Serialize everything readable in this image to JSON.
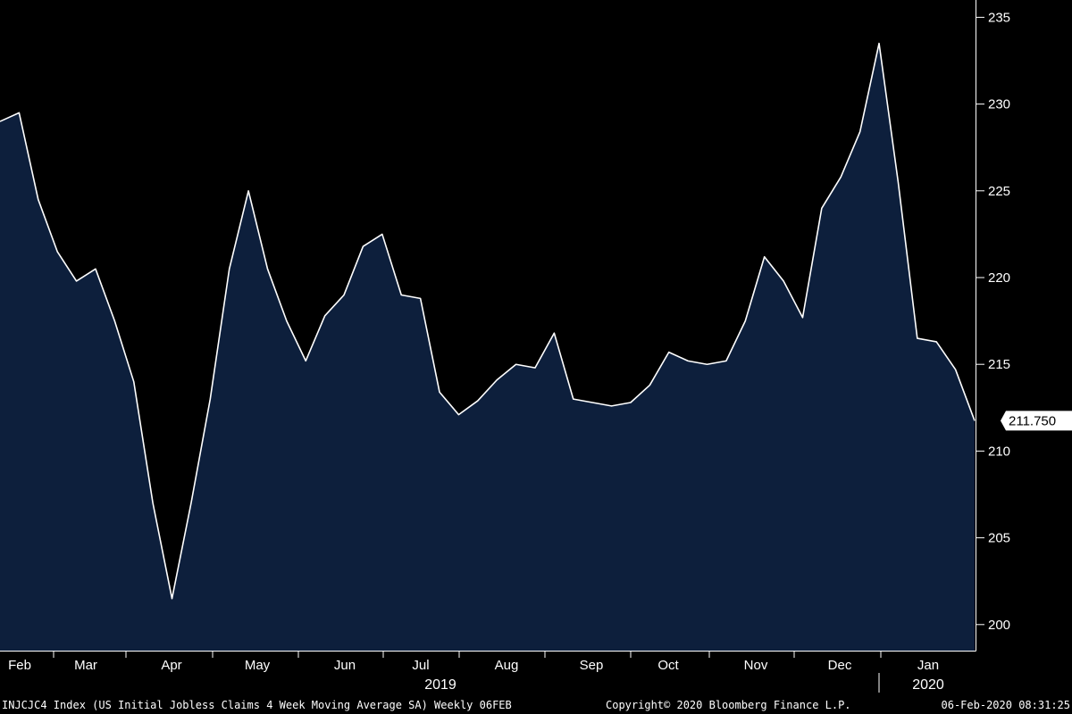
{
  "chart_data": {
    "type": "area",
    "title": "",
    "xlabel": "",
    "ylabel": "",
    "ylim": [
      198.5,
      236
    ],
    "yticks": [
      "200",
      "205",
      "210",
      "215",
      "220",
      "225",
      "230",
      "235"
    ],
    "month_labels": [
      "Feb",
      "Mar",
      "Apr",
      "May",
      "Jun",
      "Jul",
      "Aug",
      "Sep",
      "Oct",
      "Nov",
      "Dec",
      "Jan"
    ],
    "year_labels": [
      "2019",
      "2020"
    ],
    "last_value_label": "211.750",
    "colors": {
      "fill": "#0d1f3c",
      "line": "#ffffff",
      "background": "#000000"
    },
    "series": [
      {
        "values": [
          229.0,
          229.5,
          224.5,
          221.5,
          219.8,
          220.5,
          217.5,
          214.0,
          207.0,
          201.5,
          207.0,
          213.0,
          220.5,
          225.0,
          220.5,
          217.5,
          215.2,
          217.8,
          219.0,
          221.8,
          222.5,
          219.0,
          218.8,
          213.4,
          212.1,
          212.9,
          214.1,
          215.0,
          214.8,
          216.8,
          213.0,
          212.8,
          212.6,
          212.8,
          213.8,
          215.7,
          215.2,
          215.0,
          215.2,
          217.5,
          221.2,
          219.8,
          217.7,
          224.0,
          225.8,
          228.4,
          233.5,
          225.5,
          216.5,
          216.3,
          214.7,
          211.75
        ]
      }
    ]
  },
  "footer": {
    "left": "INJCJC4 Index (US Initial Jobless Claims 4 Week Moving Average SA)  Weekly 06FEB",
    "center": "Copyright© 2020 Bloomberg Finance L.P.",
    "right": "06-Feb-2020 08:31:25"
  }
}
